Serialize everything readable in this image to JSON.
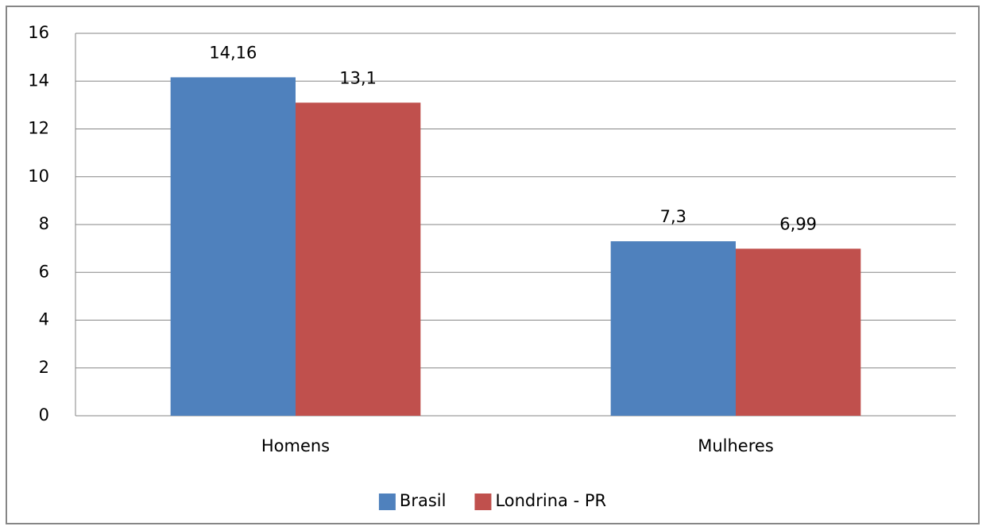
{
  "chart_data": {
    "type": "bar",
    "categories": [
      "Homens",
      "Mulheres"
    ],
    "series": [
      {
        "name": "Brasil",
        "color": "#4f81bd",
        "values": [
          14.16,
          7.3
        ],
        "value_labels": [
          "14,16",
          "7,3"
        ]
      },
      {
        "name": "Londrina - PR",
        "color": "#c0504d",
        "values": [
          13.1,
          6.99
        ],
        "value_labels": [
          "13,1",
          "6,99"
        ]
      }
    ],
    "ylim": [
      0,
      16
    ],
    "yticks": [
      0,
      2,
      4,
      6,
      8,
      10,
      12,
      14,
      16
    ],
    "grid": true,
    "legend": "bottom"
  }
}
